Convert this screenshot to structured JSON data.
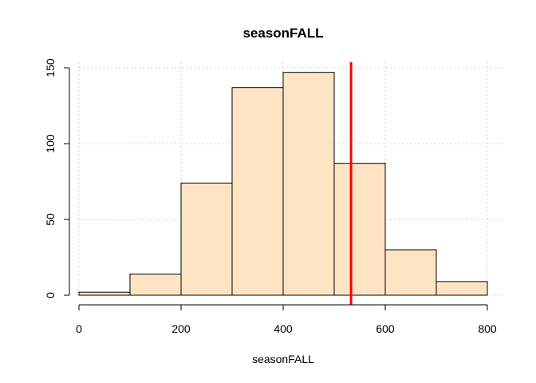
{
  "chart_data": {
    "type": "bar",
    "title": "seasonFALL",
    "xlabel": "seasonFALL",
    "ylabel": "",
    "bins": [
      {
        "start": 0,
        "end": 100,
        "count": 2
      },
      {
        "start": 100,
        "end": 200,
        "count": 14
      },
      {
        "start": 200,
        "end": 300,
        "count": 74
      },
      {
        "start": 300,
        "end": 400,
        "count": 137
      },
      {
        "start": 400,
        "end": 500,
        "count": 147
      },
      {
        "start": 500,
        "end": 600,
        "count": 87
      },
      {
        "start": 600,
        "end": 700,
        "count": 30
      },
      {
        "start": 700,
        "end": 800,
        "count": 9
      }
    ],
    "xlim": [
      0,
      800
    ],
    "ylim": [
      0,
      150
    ],
    "x_ticks": [
      0,
      200,
      400,
      600,
      800
    ],
    "y_ticks": [
      0,
      50,
      100,
      150
    ],
    "x_grid": [
      0,
      200,
      400,
      600,
      800
    ],
    "grid": true,
    "vline": {
      "x": 533,
      "color": "#ff0000"
    },
    "bar_fill": "#ffe4c4",
    "bar_stroke": "#000000",
    "grid_color": "#d3d3d3"
  }
}
